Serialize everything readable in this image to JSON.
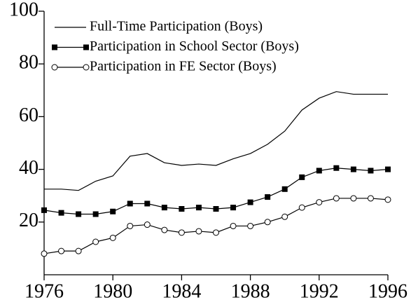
{
  "chart_data": {
    "type": "line",
    "x": [
      1976,
      1977,
      1978,
      1979,
      1980,
      1981,
      1982,
      1983,
      1984,
      1985,
      1986,
      1987,
      1988,
      1989,
      1990,
      1991,
      1992,
      1993,
      1994,
      1995,
      1996
    ],
    "series": [
      {
        "name": "Full-Time Participation (Boys)",
        "color": "#000000",
        "marker": "none",
        "values": [
          32.5,
          32.5,
          32,
          35.5,
          37.5,
          45,
          46,
          42.5,
          41.5,
          42,
          41.5,
          44,
          46,
          49.5,
          54.5,
          62.5,
          67,
          69.5,
          68.5,
          68.5,
          68.5
        ]
      },
      {
        "name": "Participation in School Sector (Boys)",
        "color": "#000000",
        "marker": "square",
        "values": [
          24.5,
          23.5,
          23,
          23,
          24,
          27,
          27,
          25.5,
          25,
          25.5,
          25,
          25.5,
          27.5,
          29.5,
          32.5,
          37,
          39.5,
          40.5,
          40,
          39.5,
          40
        ]
      },
      {
        "name": "Participation in FE Sector (Boys)",
        "color": "#000000",
        "marker": "circle",
        "values": [
          8,
          9,
          9,
          12.5,
          14,
          18.5,
          19,
          17,
          16,
          16.5,
          16,
          18.5,
          18.5,
          20,
          22,
          25.5,
          27.5,
          29,
          29,
          29,
          28.5
        ]
      }
    ],
    "xlim": [
      1976,
      1996
    ],
    "xticks": [
      1976,
      1980,
      1984,
      1988,
      1992,
      1996
    ],
    "ylim": [
      0,
      100
    ],
    "yticks": [
      20,
      40,
      60,
      80,
      100
    ],
    "legend": "upper-left",
    "grid": false
  }
}
